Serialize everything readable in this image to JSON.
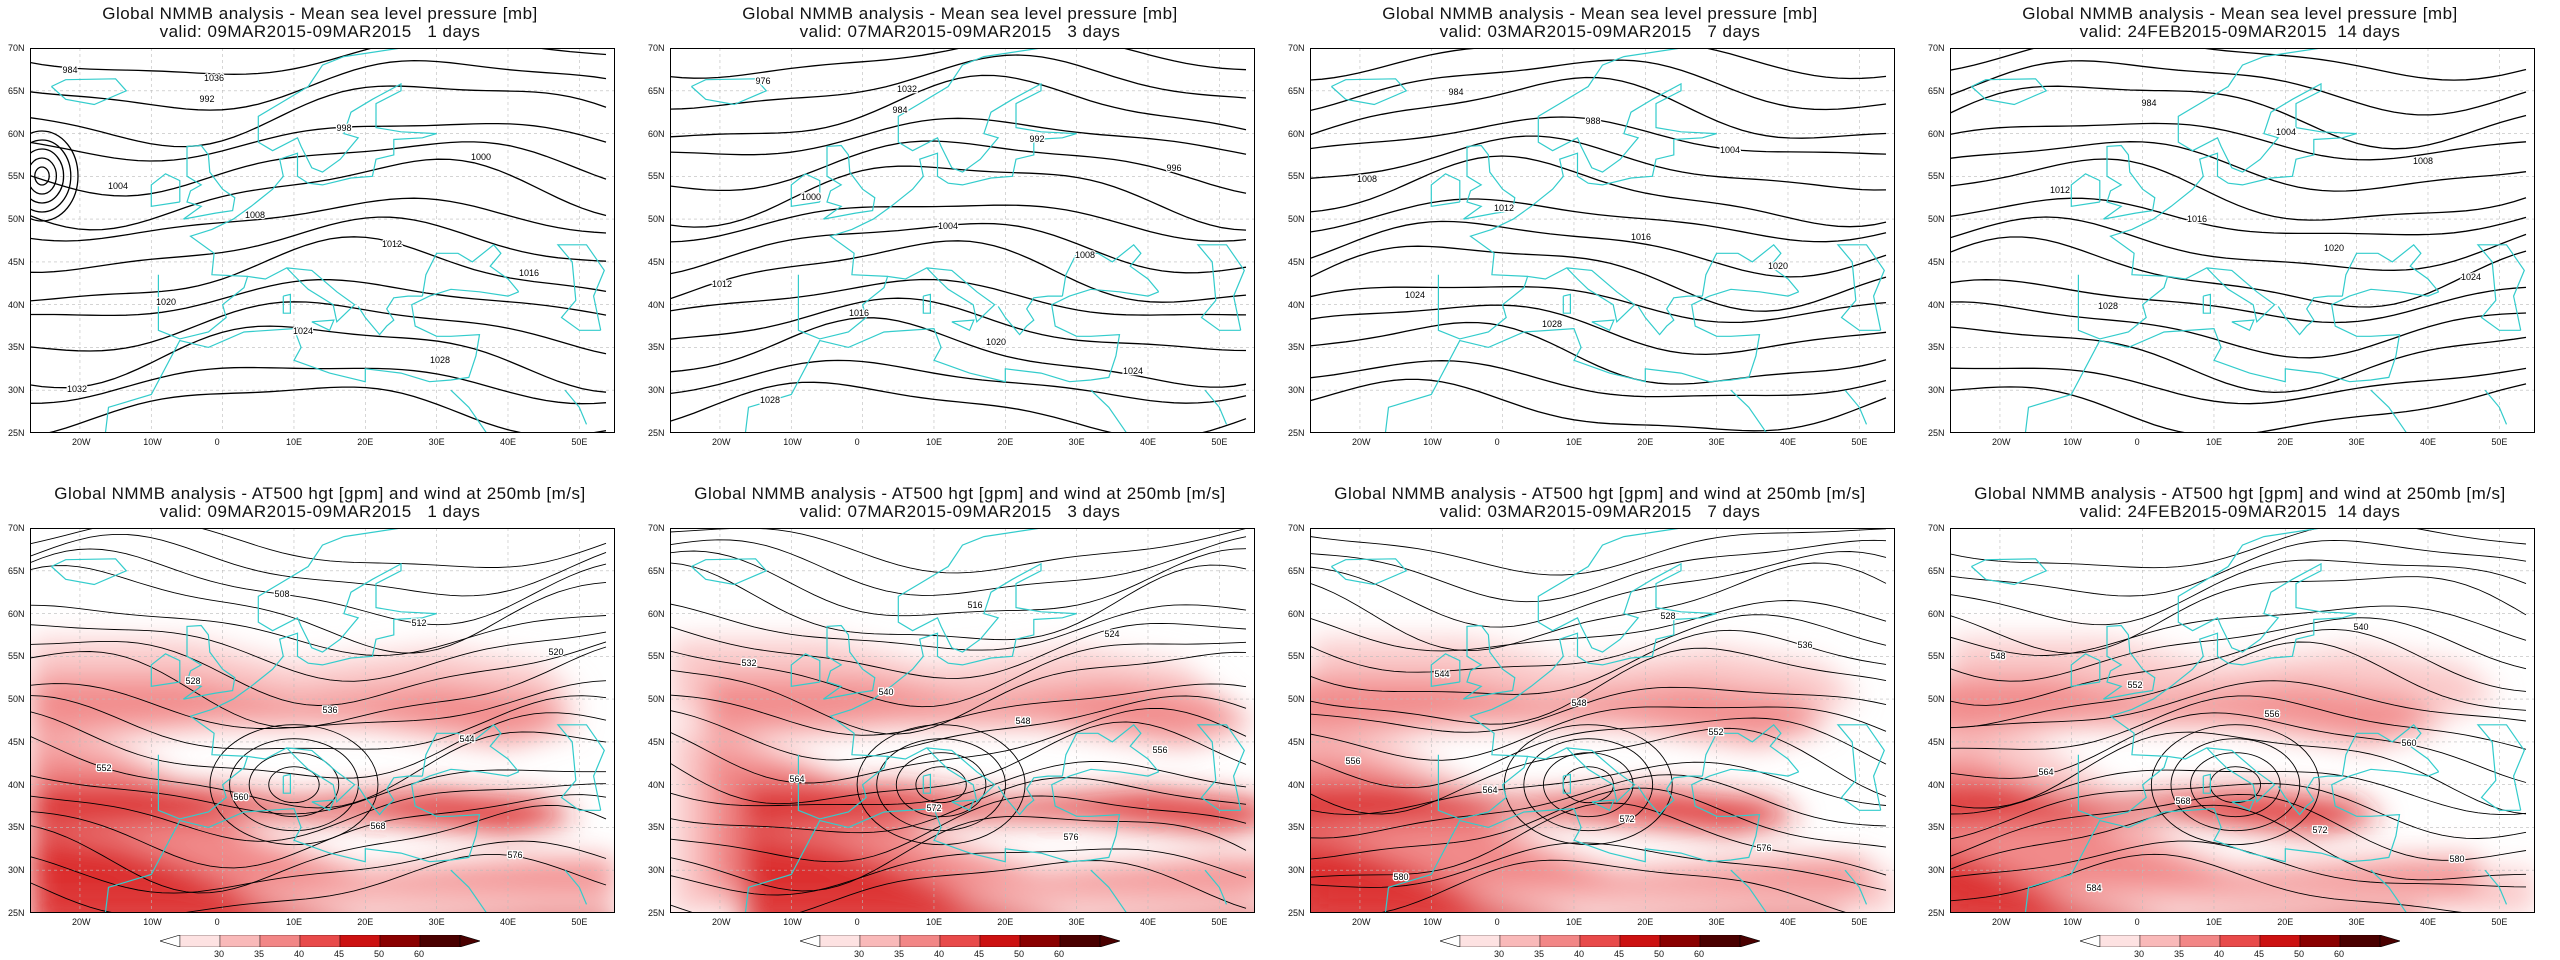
{
  "panels": [
    {
      "title": "Global NMMB analysis - Mean sea level pressure [mb]",
      "valid": "valid: 09MAR2015-09MAR2015   1 days",
      "labels": [
        "984",
        "992",
        "998",
        "1000",
        "1004",
        "1008",
        "1012",
        "1016",
        "1020",
        "1024",
        "1028",
        "1032",
        "1036"
      ]
    },
    {
      "title": "Global NMMB analysis - Mean sea level pressure [mb]",
      "valid": "valid: 07MAR2015-09MAR2015   3 days",
      "labels": [
        "976",
        "984",
        "992",
        "996",
        "1000",
        "1004",
        "1008",
        "1012",
        "1016",
        "1020",
        "1024",
        "1028",
        "1032"
      ]
    },
    {
      "title": "Global NMMB analysis - Mean sea level pressure [mb]",
      "valid": "valid: 03MAR2015-09MAR2015   7 days",
      "labels": [
        "984",
        "988",
        "1004",
        "1008",
        "1012",
        "1016",
        "1020",
        "1024",
        "1028"
      ]
    },
    {
      "title": "Global NMMB analysis - Mean sea level pressure [mb]",
      "valid": "valid: 24FEB2015-09MAR2015  14 days",
      "labels": [
        "984",
        "1004",
        "1008",
        "1012",
        "1016",
        "1020",
        "1024",
        "1028"
      ]
    },
    {
      "title": "Global NMMB analysis - AT500 hgt [gpm] and wind at 250mb [m/s]",
      "valid": "valid: 09MAR2015-09MAR2015   1 days",
      "labels": [
        "508",
        "512",
        "520",
        "528",
        "536",
        "544",
        "552",
        "560",
        "568",
        "576"
      ]
    },
    {
      "title": "Global NMMB analysis - AT500 hgt [gpm] and wind at 250mb [m/s]",
      "valid": "valid: 07MAR2015-09MAR2015   3 days",
      "labels": [
        "516",
        "524",
        "532",
        "540",
        "548",
        "556",
        "564",
        "572",
        "576"
      ]
    },
    {
      "title": "Global NMMB analysis - AT500 hgt [gpm] and wind at 250mb [m/s]",
      "valid": "valid: 03MAR2015-09MAR2015   7 days",
      "labels": [
        "528",
        "536",
        "544",
        "548",
        "552",
        "556",
        "564",
        "572",
        "576",
        "580"
      ]
    },
    {
      "title": "Global NMMB analysis - AT500 hgt [gpm] and wind at 250mb [m/s]",
      "valid": "valid: 24FEB2015-09MAR2015  14 days",
      "labels": [
        "540",
        "548",
        "552",
        "556",
        "560",
        "564",
        "568",
        "572",
        "580",
        "584"
      ]
    }
  ],
  "axes": {
    "lat_ticks": [
      "70N",
      "65N",
      "60N",
      "55N",
      "50N",
      "45N",
      "40N",
      "35N",
      "30N",
      "25N"
    ],
    "lon_ticks": [
      "20W",
      "10W",
      "0",
      "10E",
      "20E",
      "30E",
      "40E",
      "50E"
    ]
  },
  "colorbar": {
    "ticks": [
      "30",
      "35",
      "40",
      "45",
      "50",
      "60"
    ],
    "colors": [
      "#fde2e2",
      "#f9b9b9",
      "#f28686",
      "#e84a4a",
      "#cc1111",
      "#8a0000",
      "#4a0000"
    ]
  },
  "colors": {
    "coast": "#33cccc",
    "contour": "#000000"
  }
}
